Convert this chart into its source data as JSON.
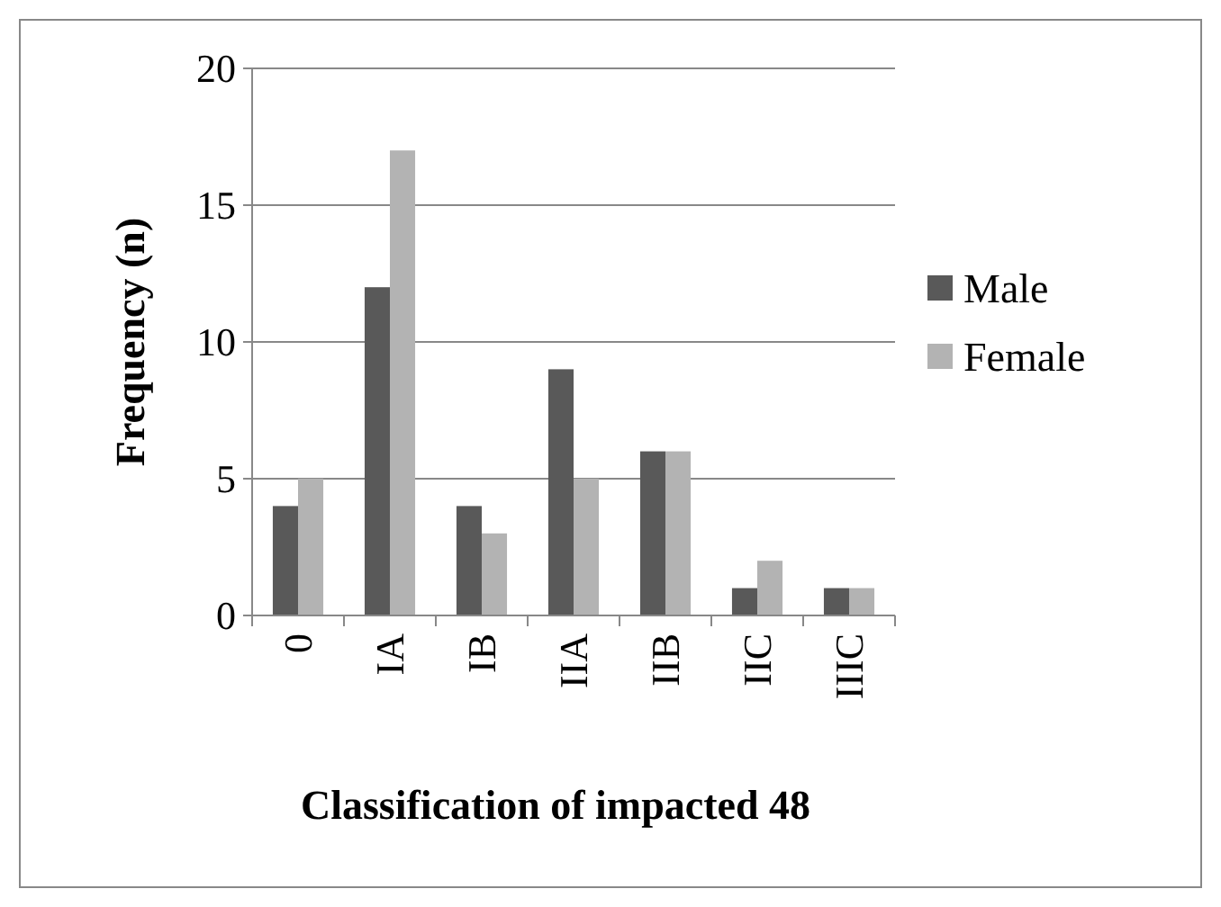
{
  "chart_data": {
    "type": "bar",
    "xlabel": "Classification of impacted 48",
    "ylabel": "Frequency (n)",
    "categories": [
      "0",
      "IA",
      "IB",
      "IIA",
      "IIB",
      "IIC",
      "IIIC"
    ],
    "series": [
      {
        "name": "Male",
        "color": "#595959",
        "values": [
          4,
          12,
          4,
          9,
          6,
          1,
          1
        ]
      },
      {
        "name": "Female",
        "color": "#b3b3b3",
        "values": [
          5,
          17,
          3,
          5,
          6,
          2,
          1
        ]
      }
    ],
    "ylim": [
      0,
      20
    ],
    "yticks": [
      0,
      5,
      10,
      15,
      20
    ],
    "grid": "y",
    "legend": "right"
  }
}
